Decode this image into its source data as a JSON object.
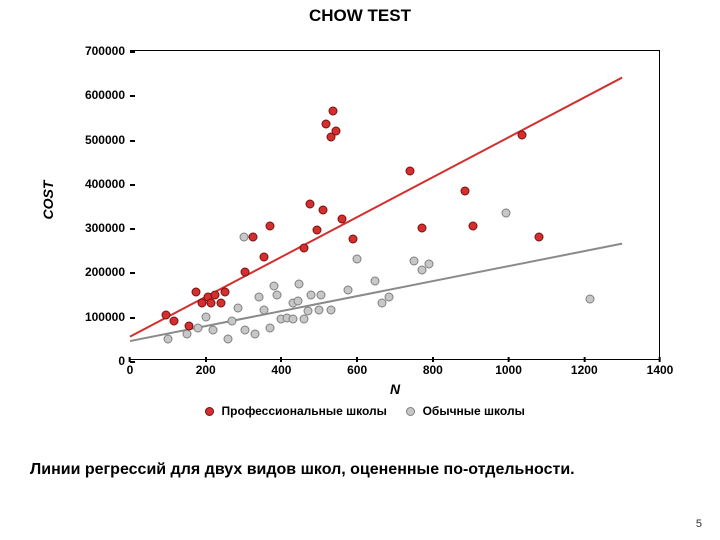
{
  "title": "CHOW TEST",
  "caption": "Линии регрессий для двух видов школ, оцененные по-отдельности.",
  "page_number": "5",
  "chart": {
    "type": "scatter",
    "xlabel": "N",
    "ylabel": "COST",
    "xlim": [
      0,
      1400
    ],
    "ylim": [
      0,
      700000
    ],
    "xticks": [
      0,
      200,
      400,
      600,
      800,
      1000,
      1200,
      1400
    ],
    "yticks": [
      0,
      100000,
      200000,
      300000,
      400000,
      500000,
      600000,
      700000
    ],
    "background_color": "#ffffff",
    "axis_color": "#000000",
    "tick_fontsize": 12,
    "label_fontsize": 14,
    "title_fontsize": 17,
    "series": [
      {
        "name": "Профессиональные школы",
        "fill": "#d32f2f",
        "stroke": "#7a1010",
        "regression": {
          "x1": 0,
          "y1": 55000,
          "x2": 1300,
          "y2": 640000,
          "color": "#d32f2f",
          "width": 2
        },
        "points": [
          [
            95,
            105000
          ],
          [
            115,
            90000
          ],
          [
            155,
            80000
          ],
          [
            175,
            155000
          ],
          [
            190,
            130000
          ],
          [
            205,
            145000
          ],
          [
            215,
            130000
          ],
          [
            225,
            150000
          ],
          [
            240,
            130000
          ],
          [
            250,
            155000
          ],
          [
            305,
            200000
          ],
          [
            325,
            280000
          ],
          [
            355,
            235000
          ],
          [
            370,
            305000
          ],
          [
            460,
            255000
          ],
          [
            475,
            355000
          ],
          [
            495,
            295000
          ],
          [
            510,
            340000
          ],
          [
            518,
            535000
          ],
          [
            530,
            505000
          ],
          [
            535,
            565000
          ],
          [
            545,
            520000
          ],
          [
            560,
            320000
          ],
          [
            590,
            275000
          ],
          [
            740,
            430000
          ],
          [
            770,
            300000
          ],
          [
            885,
            385000
          ],
          [
            905,
            305000
          ],
          [
            1035,
            510000
          ],
          [
            1080,
            280000
          ]
        ]
      },
      {
        "name": "Обычные школы",
        "fill": "#c7c7c7",
        "stroke": "#7f7f7f",
        "regression": {
          "x1": 0,
          "y1": 45000,
          "x2": 1300,
          "y2": 265000,
          "color": "#8a8a8a",
          "width": 2
        },
        "points": [
          [
            100,
            50000
          ],
          [
            150,
            60000
          ],
          [
            180,
            75000
          ],
          [
            200,
            100000
          ],
          [
            220,
            70000
          ],
          [
            260,
            50000
          ],
          [
            270,
            90000
          ],
          [
            285,
            120000
          ],
          [
            300,
            280000
          ],
          [
            305,
            70000
          ],
          [
            330,
            60000
          ],
          [
            340,
            145000
          ],
          [
            355,
            115000
          ],
          [
            370,
            75000
          ],
          [
            380,
            170000
          ],
          [
            388,
            150000
          ],
          [
            400,
            95000
          ],
          [
            415,
            98000
          ],
          [
            430,
            130000
          ],
          [
            430,
            95000
          ],
          [
            445,
            135000
          ],
          [
            447,
            175000
          ],
          [
            460,
            95000
          ],
          [
            470,
            112000
          ],
          [
            478,
            150000
          ],
          [
            500,
            115000
          ],
          [
            505,
            150000
          ],
          [
            530,
            115000
          ],
          [
            575,
            160000
          ],
          [
            600,
            230000
          ],
          [
            648,
            180000
          ],
          [
            665,
            130000
          ],
          [
            685,
            145000
          ],
          [
            750,
            225000
          ],
          [
            770,
            205000
          ],
          [
            790,
            220000
          ],
          [
            992,
            335000
          ],
          [
            1215,
            140000
          ]
        ]
      }
    ],
    "legend": {
      "items": [
        {
          "label": "Профессиональные школы",
          "fill": "#d32f2f",
          "stroke": "#7a1010"
        },
        {
          "label": "Обычные школы",
          "fill": "#c7c7c7",
          "stroke": "#7f7f7f"
        }
      ]
    }
  }
}
